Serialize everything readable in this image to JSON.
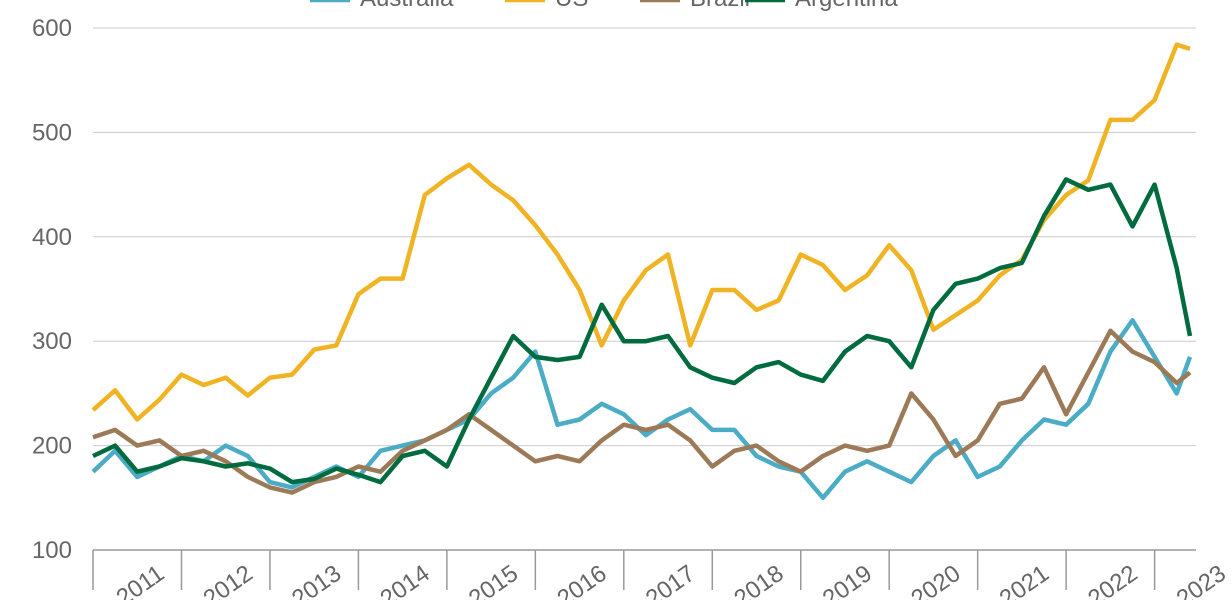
{
  "chart_data": {
    "type": "line",
    "x": [
      2011,
      2011.25,
      2011.5,
      2011.75,
      2012,
      2012.25,
      2012.5,
      2012.75,
      2013,
      2013.25,
      2013.5,
      2013.75,
      2014,
      2014.25,
      2014.5,
      2014.75,
      2015,
      2015.25,
      2015.5,
      2015.75,
      2016,
      2016.25,
      2016.5,
      2016.75,
      2017,
      2017.25,
      2017.5,
      2017.75,
      2018,
      2018.25,
      2018.5,
      2018.75,
      2019,
      2019.25,
      2019.5,
      2019.75,
      2020,
      2020.25,
      2020.5,
      2020.75,
      2021,
      2021.25,
      2021.5,
      2021.75,
      2022,
      2022.25,
      2022.5,
      2022.75,
      2023,
      2023.25,
      2023.4
    ],
    "series": [
      {
        "name": "Australia",
        "color": "#4bacc6",
        "values": [
          175,
          195,
          170,
          180,
          190,
          185,
          200,
          190,
          165,
          160,
          170,
          180,
          170,
          195,
          200,
          205,
          215,
          225,
          250,
          265,
          290,
          220,
          225,
          240,
          230,
          210,
          225,
          235,
          215,
          215,
          190,
          180,
          175,
          150,
          175,
          185,
          175,
          165,
          190,
          205,
          170,
          180,
          205,
          225,
          220,
          240,
          290,
          320,
          285,
          250,
          285
        ]
      },
      {
        "name": "US",
        "color": "#f0b323",
        "values": [
          234,
          253,
          225,
          244,
          268,
          258,
          265,
          248,
          265,
          268,
          292,
          296,
          345,
          360,
          360,
          440,
          456,
          469,
          450,
          435,
          411,
          383,
          349,
          296,
          339,
          368,
          383,
          296,
          349,
          349,
          330,
          339,
          383,
          373,
          349,
          363,
          392,
          368,
          311,
          325,
          339,
          363,
          378,
          416,
          440,
          454,
          512,
          512,
          531,
          584,
          580
        ]
      },
      {
        "name": "Brazil",
        "color": "#9c7a58",
        "values": [
          208,
          215,
          200,
          205,
          190,
          195,
          185,
          170,
          160,
          155,
          165,
          170,
          180,
          175,
          195,
          205,
          215,
          230,
          215,
          200,
          185,
          190,
          185,
          205,
          220,
          215,
          220,
          205,
          180,
          195,
          200,
          185,
          175,
          190,
          200,
          195,
          200,
          250,
          225,
          190,
          205,
          240,
          245,
          275,
          230,
          270,
          310,
          290,
          280,
          260,
          270
        ]
      },
      {
        "name": "Argentina",
        "color": "#006b3f",
        "values": [
          190,
          200,
          175,
          180,
          188,
          185,
          180,
          183,
          178,
          165,
          168,
          178,
          172,
          165,
          190,
          195,
          180,
          225,
          265,
          305,
          285,
          282,
          285,
          335,
          300,
          300,
          305,
          275,
          265,
          260,
          275,
          280,
          268,
          262,
          290,
          305,
          300,
          275,
          330,
          355,
          360,
          370,
          375,
          420,
          455,
          445,
          450,
          410,
          450,
          370,
          305
        ]
      }
    ],
    "xlim": [
      2011,
      2023.4
    ],
    "xticks": [
      2011,
      2012,
      2013,
      2014,
      2015,
      2016,
      2017,
      2018,
      2019,
      2020,
      2021,
      2022,
      2023
    ],
    "ylim": [
      100,
      600
    ],
    "yticks": [
      100,
      200,
      300,
      400,
      500,
      600
    ],
    "grid": true,
    "legend": "top"
  }
}
